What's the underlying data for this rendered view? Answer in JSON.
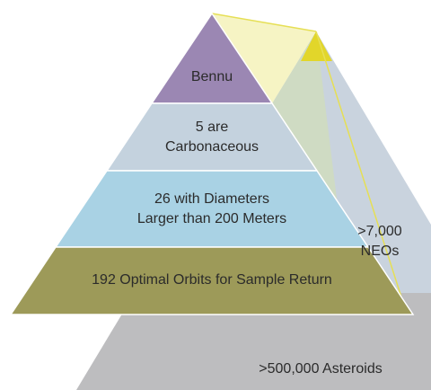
{
  "pyramid": {
    "layers": [
      {
        "lines": [
          "Bennu"
        ]
      },
      {
        "lines": [
          "5 are",
          "Carbonaceous"
        ]
      },
      {
        "lines": [
          "26 with Diameters",
          "Larger than 200 Meters"
        ]
      },
      {
        "lines": [
          "192 Optimal Orbits for Sample Return"
        ]
      }
    ],
    "neos": {
      "lines": [
        ">7,000",
        "NEOs"
      ]
    },
    "asteroids": {
      "lines": [
        ">500,000 Asteroids"
      ]
    }
  }
}
